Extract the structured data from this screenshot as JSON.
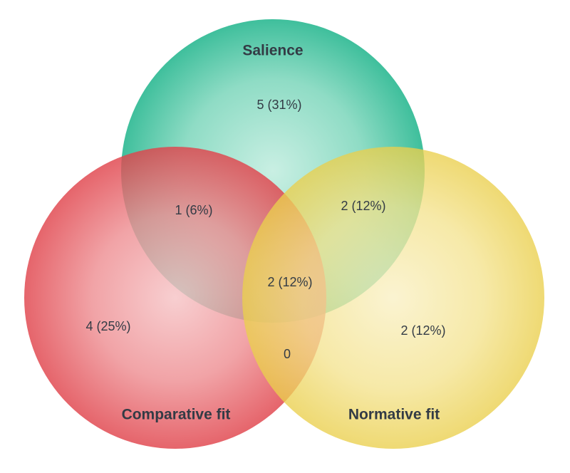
{
  "sets": [
    {
      "label": "Salience"
    },
    {
      "label": "Comparative fit"
    },
    {
      "label": "Normative fit"
    }
  ],
  "regions": [
    {
      "label": "5 (31%)"
    },
    {
      "label": "1 (6%)"
    },
    {
      "label": "2 (12%)"
    },
    {
      "label": "2 (12%)"
    },
    {
      "label": "4 (25%)"
    },
    {
      "label": "2 (12%)"
    },
    {
      "label": "0"
    }
  ]
}
